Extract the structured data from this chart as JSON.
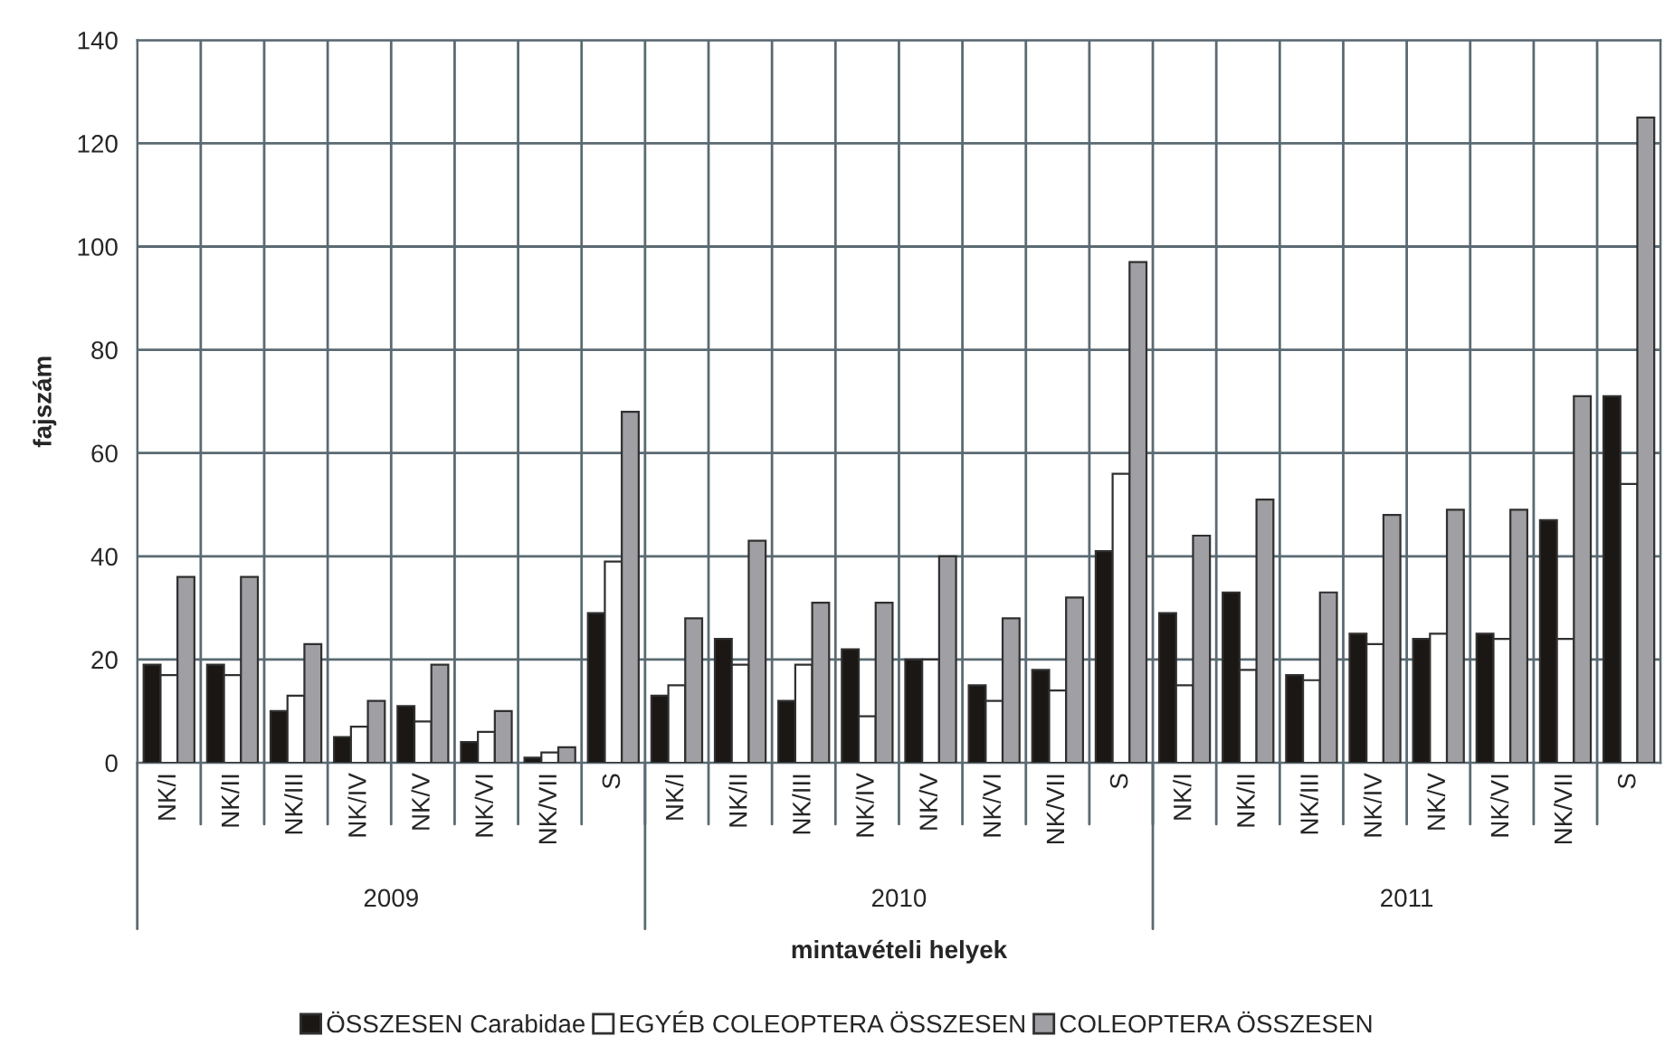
{
  "chart_data": {
    "type": "bar",
    "xlabel": "mintavételi helyek",
    "ylabel": "fajszám",
    "categories": [
      "NK/I",
      "NK/II",
      "NK/III",
      "NK/IV",
      "NK/V",
      "NK/VI",
      "NK/VII",
      "S",
      "NK/I",
      "NK/II",
      "NK/III",
      "NK/IV",
      "NK/V",
      "NK/VI",
      "NK/VII",
      "S",
      "NK/I",
      "NK/II",
      "NK/III",
      "NK/IV",
      "NK/V",
      "NK/VI",
      "NK/VII",
      "S"
    ],
    "series": [
      {
        "name": "ÖSSZESEN Carabidae",
        "color": "#1a1714",
        "values": [
          19,
          19,
          10,
          5,
          11,
          4,
          1,
          29,
          13,
          24,
          12,
          22,
          20,
          15,
          18,
          41,
          29,
          33,
          17,
          25,
          24,
          25,
          47,
          71
        ]
      },
      {
        "name": "EGYÉB COLEOPTERA ÖSSZESEN",
        "color": "#ffffff",
        "values": [
          17,
          17,
          13,
          7,
          8,
          6,
          2,
          39,
          15,
          19,
          19,
          9,
          20,
          12,
          14,
          56,
          15,
          18,
          16,
          23,
          25,
          24,
          24,
          54
        ]
      },
      {
        "name": "COLEOPTERA ÖSSZESEN",
        "color": "#a0a0a4",
        "values": [
          36,
          36,
          23,
          12,
          19,
          10,
          3,
          68,
          28,
          43,
          31,
          31,
          40,
          28,
          32,
          97,
          44,
          51,
          33,
          48,
          49,
          49,
          71,
          125
        ]
      }
    ],
    "annotations": [
      "2009",
      "2010",
      "2011"
    ],
    "ylim": [
      0,
      140
    ],
    "yticks": [
      0,
      20,
      40,
      60,
      80,
      100,
      120,
      140
    ],
    "grid": true,
    "legend": "bottom"
  }
}
